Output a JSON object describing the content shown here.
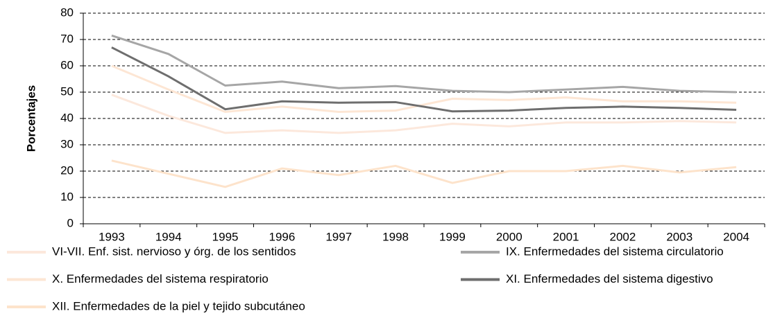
{
  "chart_data": {
    "type": "line",
    "y_label": "Porcentajes",
    "categories": [
      "1993",
      "1994",
      "1995",
      "1996",
      "1997",
      "1998",
      "1999",
      "2000",
      "2001",
      "2002",
      "2003",
      "2004"
    ],
    "series": [
      {
        "name": "VI-VII. Enf. sist. nervioso y órg. de los sentidos",
        "color": "#fce8dc",
        "values": [
          49,
          41,
          34.5,
          35.5,
          34.5,
          35.5,
          38,
          37,
          38.5,
          38.5,
          39,
          38.5
        ]
      },
      {
        "name": "IX. Enfermedades del sistema circulatorio",
        "color": "#a6a6a6",
        "values": [
          71.5,
          64.5,
          52.5,
          54,
          51.5,
          52.3,
          50.5,
          50,
          51,
          52,
          50.5,
          50
        ]
      },
      {
        "name": "X. Enfermedades del sistema respiratorio",
        "color": "#fde6d4",
        "values": [
          60,
          51,
          42.5,
          44.5,
          42.5,
          43,
          47.5,
          47,
          48,
          46.5,
          46.5,
          46
        ]
      },
      {
        "name": "XI. Enfermedades del sistema digestivo",
        "color": "#6e6e6e",
        "values": [
          67,
          56,
          43.5,
          46.5,
          46,
          46.2,
          42.7,
          43,
          44,
          44.5,
          44,
          43.3
        ]
      },
      {
        "name": "XII. Enfermedades de la piel y tejido subcutáneo",
        "color": "#fde3cb",
        "values": [
          24,
          19,
          14,
          21,
          18.5,
          22,
          15.5,
          20,
          20,
          22,
          19.5,
          21.5
        ]
      }
    ],
    "ylim": [
      0,
      80
    ],
    "yticks": [
      0,
      10,
      20,
      30,
      40,
      50,
      60,
      70,
      80
    ],
    "grid": true
  }
}
